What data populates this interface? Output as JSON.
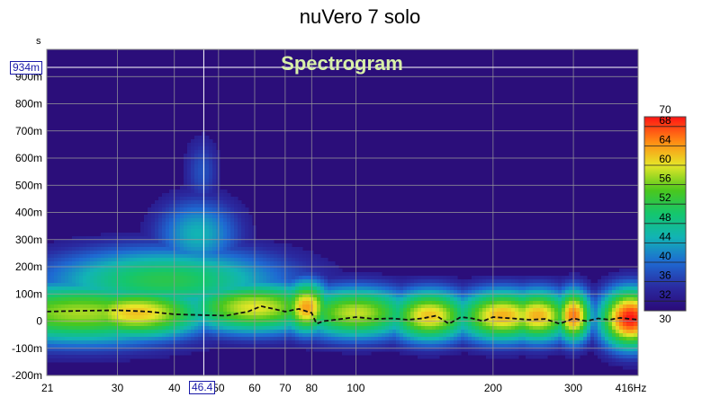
{
  "title": "nuVero 7 solo",
  "chart_data": {
    "type": "heatmap",
    "title": "nuVero 7 solo",
    "subtitle": "Spectrogram",
    "x_unit": "Hz",
    "y_unit": "s",
    "x_scale": "log",
    "xlim": [
      21,
      416
    ],
    "ylim": [
      -0.2,
      1.0
    ],
    "x_ticks": [
      "21",
      "30",
      "40",
      "50",
      "60",
      "70",
      "80",
      "100",
      "200",
      "300",
      "416Hz"
    ],
    "y_ticks": [
      "900m",
      "800m",
      "700m",
      "600m",
      "500m",
      "400m",
      "300m",
      "200m",
      "100m",
      "0",
      "-100m",
      "-200m"
    ],
    "y_tick_values": [
      0.9,
      0.8,
      0.7,
      0.6,
      0.5,
      0.4,
      0.3,
      0.2,
      0.1,
      0,
      -0.1,
      -0.2
    ],
    "colorbar": {
      "range": [
        30,
        70
      ],
      "ticks": [
        "70",
        "68",
        "64",
        "60",
        "56",
        "52",
        "48",
        "44",
        "40",
        "36",
        "32",
        "30"
      ],
      "tick_values": [
        70,
        68,
        64,
        60,
        56,
        52,
        48,
        44,
        40,
        36,
        32,
        30
      ]
    },
    "cursor": {
      "x_label": "46.4",
      "y_label": "934m",
      "x": 46.4,
      "y": 0.934
    },
    "peak_time_curve": {
      "style": "dashed",
      "x": [
        21,
        25,
        30,
        35,
        40,
        46,
        52,
        58,
        62,
        66,
        70,
        75,
        80,
        82,
        85,
        90,
        100,
        110,
        120,
        130,
        140,
        150,
        160,
        170,
        180,
        190,
        200,
        220,
        240,
        260,
        280,
        300,
        320,
        340,
        360,
        380,
        400,
        416
      ],
      "y": [
        0.035,
        0.038,
        0.04,
        0.035,
        0.025,
        0.022,
        0.02,
        0.035,
        0.055,
        0.045,
        0.035,
        0.045,
        0.03,
        -0.01,
        0.0,
        0.005,
        0.015,
        0.008,
        0.01,
        0.005,
        0.01,
        0.02,
        -0.01,
        0.015,
        0.01,
        0.0,
        0.015,
        0.01,
        0.005,
        0.008,
        -0.01,
        0.01,
        0.0,
        0.01,
        0.005,
        0.012,
        0.008,
        0.005
      ]
    },
    "energy_blobs": [
      {
        "f": 25,
        "t": 0.03,
        "sf": 0.2,
        "st": 0.085,
        "level": 58
      },
      {
        "f": 33,
        "t": 0.03,
        "sf": 0.12,
        "st": 0.07,
        "level": 62
      },
      {
        "f": 38,
        "t": 0.15,
        "sf": 0.2,
        "st": 0.09,
        "level": 52
      },
      {
        "f": 45,
        "t": 0.32,
        "sf": 0.07,
        "st": 0.1,
        "level": 45
      },
      {
        "f": 46,
        "t": 0.55,
        "sf": 0.03,
        "st": 0.1,
        "level": 38
      },
      {
        "f": 60,
        "t": 0.05,
        "sf": 0.12,
        "st": 0.07,
        "level": 60
      },
      {
        "f": 78,
        "t": 0.05,
        "sf": 0.04,
        "st": 0.07,
        "level": 64
      },
      {
        "f": 100,
        "t": 0.03,
        "sf": 0.1,
        "st": 0.07,
        "level": 59
      },
      {
        "f": 145,
        "t": 0.02,
        "sf": 0.07,
        "st": 0.07,
        "level": 62
      },
      {
        "f": 210,
        "t": 0.02,
        "sf": 0.08,
        "st": 0.07,
        "level": 63
      },
      {
        "f": 250,
        "t": 0.02,
        "sf": 0.06,
        "st": 0.07,
        "level": 63
      },
      {
        "f": 300,
        "t": 0.02,
        "sf": 0.03,
        "st": 0.07,
        "level": 66
      },
      {
        "f": 400,
        "t": 0.01,
        "sf": 0.05,
        "st": 0.08,
        "level": 70
      }
    ]
  }
}
